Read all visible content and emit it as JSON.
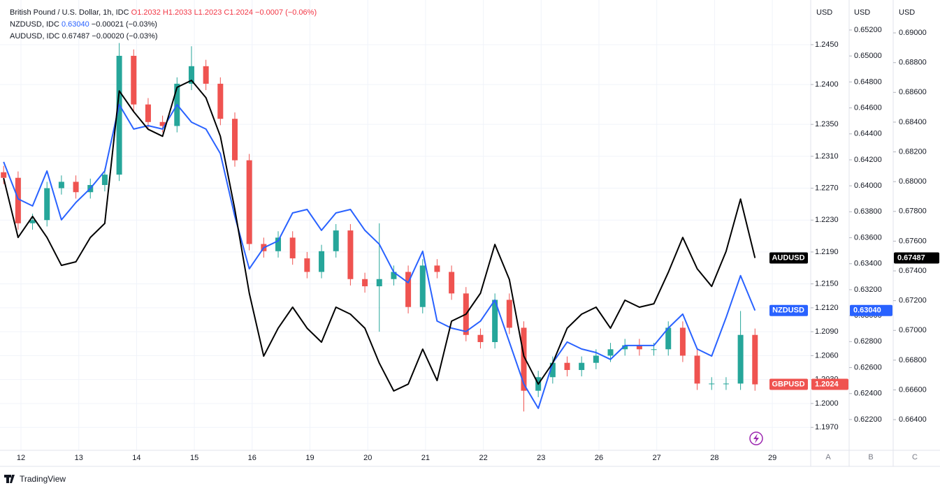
{
  "chart_data": {
    "type": "candlestick",
    "legend": {
      "gbp_title": "British Pound / U.S. Dollar, 1h, IDC",
      "gbp_o": "O1.2032",
      "gbp_h": "H1.2033",
      "gbp_l": "L1.2023",
      "gbp_c": "C1.2024",
      "gbp_chg": "−0.0007 (−0.06%)",
      "nzd_title": "NZDUSD, IDC",
      "nzd_val": "0.63040",
      "nzd_chg": "−0.00021 (−0.03%)",
      "aud_title": "AUDUSD, IDC",
      "aud_val": "0.67487",
      "aud_chg": "−0.00020 (−0.03%)"
    },
    "brand": "TradingView",
    "axis_units": [
      "USD",
      "USD",
      "USD"
    ],
    "axis_letters": [
      "A",
      "B",
      "C"
    ],
    "grid": true,
    "x": [
      -0.3,
      -0.05,
      0.2,
      0.45,
      0.7,
      0.95,
      1.2,
      1.45,
      1.7,
      1.95,
      2.2,
      2.45,
      2.7,
      2.95,
      3.2,
      3.45,
      3.7,
      3.95,
      4.2,
      4.45,
      4.7,
      4.95,
      5.2,
      5.45,
      5.7,
      5.95,
      6.2,
      6.45,
      6.7,
      6.95,
      7.2,
      7.45,
      7.7,
      7.95,
      8.2,
      8.45,
      8.7,
      8.95,
      9.2,
      9.45,
      9.7,
      9.95,
      10.2,
      10.45,
      10.7,
      10.95,
      11.2,
      11.45,
      11.7,
      11.95,
      12.2,
      12.45,
      12.7
    ],
    "xlim": [
      -0.363,
      13.664
    ],
    "xticks": [
      {
        "value": 0,
        "label": "12"
      },
      {
        "value": 1,
        "label": "13"
      },
      {
        "value": 2,
        "label": "14"
      },
      {
        "value": 3,
        "label": "15"
      },
      {
        "value": 4,
        "label": "16"
      },
      {
        "value": 5,
        "label": "19"
      },
      {
        "value": 6,
        "label": "20"
      },
      {
        "value": 7,
        "label": "21"
      },
      {
        "value": 8,
        "label": "22"
      },
      {
        "value": 9,
        "label": "23"
      },
      {
        "value": 10,
        "label": "26"
      },
      {
        "value": 11,
        "label": "27"
      },
      {
        "value": 12,
        "label": "28"
      },
      {
        "value": 13,
        "label": "29"
      }
    ],
    "ylim": [
      1.19413,
      1.2506
    ],
    "yticks": [
      {
        "value": 1.245,
        "label": "1.2450"
      },
      {
        "value": 1.24,
        "label": "1.2400"
      },
      {
        "value": 1.235,
        "label": "1.2350"
      },
      {
        "value": 1.231,
        "label": "1.2310"
      },
      {
        "value": 1.227,
        "label": "1.2270"
      },
      {
        "value": 1.223,
        "label": "1.2230"
      },
      {
        "value": 1.219,
        "label": "1.2190"
      },
      {
        "value": 1.215,
        "label": "1.2150"
      },
      {
        "value": 1.212,
        "label": "1.2120"
      },
      {
        "value": 1.209,
        "label": "1.2090"
      },
      {
        "value": 1.206,
        "label": "1.2060"
      },
      {
        "value": 1.203,
        "label": "1.2030"
      },
      {
        "value": 1.2,
        "label": "1.2000"
      },
      {
        "value": 1.197,
        "label": "1.1970"
      }
    ],
    "y2lim": [
      0.61963,
      0.65431
    ],
    "y2ticks": [
      {
        "value": 0.652,
        "label": "0.65200"
      },
      {
        "value": 0.65,
        "label": "0.65000"
      },
      {
        "value": 0.648,
        "label": "0.64800"
      },
      {
        "value": 0.646,
        "label": "0.64600"
      },
      {
        "value": 0.644,
        "label": "0.64400"
      },
      {
        "value": 0.642,
        "label": "0.64200"
      },
      {
        "value": 0.64,
        "label": "0.64000"
      },
      {
        "value": 0.638,
        "label": "0.63800"
      },
      {
        "value": 0.636,
        "label": "0.63600"
      },
      {
        "value": 0.634,
        "label": "0.63400"
      },
      {
        "value": 0.632,
        "label": "0.63200"
      },
      {
        "value": 0.63,
        "label": "0.63000"
      },
      {
        "value": 0.628,
        "label": "0.62800"
      },
      {
        "value": 0.626,
        "label": "0.62600"
      },
      {
        "value": 0.624,
        "label": "0.62400"
      },
      {
        "value": 0.622,
        "label": "0.62200"
      }
    ],
    "y3lim": [
      0.66194,
      0.69221
    ],
    "y3ticks": [
      {
        "value": 0.69,
        "label": "0.69000"
      },
      {
        "value": 0.688,
        "label": "0.68800"
      },
      {
        "value": 0.686,
        "label": "0.68600"
      },
      {
        "value": 0.684,
        "label": "0.68400"
      },
      {
        "value": 0.682,
        "label": "0.68200"
      },
      {
        "value": 0.68,
        "label": "0.68000"
      },
      {
        "value": 0.678,
        "label": "0.67800"
      },
      {
        "value": 0.676,
        "label": "0.67600"
      },
      {
        "value": 0.674,
        "label": "0.67400"
      },
      {
        "value": 0.672,
        "label": "0.67200"
      },
      {
        "value": 0.67,
        "label": "0.67000"
      },
      {
        "value": 0.668,
        "label": "0.66800"
      },
      {
        "value": 0.666,
        "label": "0.66600"
      },
      {
        "value": 0.664,
        "label": "0.66400"
      }
    ],
    "series": [
      {
        "name": "GBPUSD",
        "type": "candlestick",
        "axis": "y",
        "up_color": "#26a69a",
        "down_color": "#ef5350",
        "tag_color": "#ef5350",
        "open": [
          1.229,
          1.2283,
          1.2226,
          1.223,
          1.227,
          1.2278,
          1.2265,
          1.2274,
          1.2287,
          1.2436,
          1.2375,
          1.2353,
          1.2348,
          1.2401,
          1.2423,
          1.2401,
          1.2357,
          1.2305,
          1.22,
          1.2191,
          1.2208,
          1.2182,
          1.2165,
          1.2191,
          1.2217,
          1.2156,
          1.2147,
          1.2156,
          1.2165,
          1.2121,
          1.2173,
          1.2165,
          1.2138,
          1.2086,
          1.2077,
          1.213,
          1.2095,
          1.2016,
          1.2033,
          1.2051,
          1.2042,
          1.2051,
          1.206,
          1.2068,
          1.2073,
          1.2068,
          1.2068,
          1.2095,
          1.206,
          1.2025,
          1.2025,
          1.2025,
          1.2086
        ],
        "high": [
          1.2298,
          1.2291,
          1.2238,
          1.2278,
          1.2286,
          1.2286,
          1.2282,
          1.2295,
          1.2452,
          1.2444,
          1.2383,
          1.2361,
          1.2409,
          1.2448,
          1.2431,
          1.2409,
          1.2365,
          1.2313,
          1.2208,
          1.2216,
          1.2216,
          1.219,
          1.2199,
          1.2225,
          1.2225,
          1.2164,
          1.2226,
          1.2173,
          1.2173,
          1.2181,
          1.2181,
          1.2173,
          1.2146,
          1.2094,
          1.2138,
          1.2138,
          1.2103,
          1.2041,
          1.2059,
          1.2059,
          1.2059,
          1.2068,
          1.2076,
          1.2081,
          1.2081,
          1.2076,
          1.2103,
          1.2103,
          1.2068,
          1.2033,
          1.2033,
          1.2116,
          1.2094
        ],
        "low": [
          1.2275,
          1.2218,
          1.2218,
          1.2222,
          1.2262,
          1.2257,
          1.2257,
          1.2266,
          1.2279,
          1.2367,
          1.2345,
          1.234,
          1.234,
          1.2393,
          1.2393,
          1.2349,
          1.2297,
          1.2192,
          1.2183,
          1.2183,
          1.2174,
          1.2157,
          1.2157,
          1.2183,
          1.2148,
          1.2139,
          1.209,
          1.2148,
          1.2113,
          1.2113,
          1.2157,
          1.213,
          1.2078,
          1.2069,
          1.2069,
          1.2087,
          1.199,
          1.2008,
          1.2025,
          1.2034,
          1.2034,
          1.2043,
          1.2052,
          1.206,
          1.206,
          1.206,
          1.206,
          1.2052,
          1.2017,
          1.2017,
          1.2017,
          1.2017,
          1.2016
        ],
        "close": [
          1.2283,
          1.2226,
          1.223,
          1.227,
          1.2278,
          1.2265,
          1.2274,
          1.2287,
          1.2436,
          1.2375,
          1.2353,
          1.2348,
          1.2401,
          1.2423,
          1.2401,
          1.2357,
          1.2305,
          1.22,
          1.2191,
          1.2208,
          1.2182,
          1.2165,
          1.2191,
          1.2217,
          1.2156,
          1.2147,
          1.2156,
          1.2165,
          1.2121,
          1.2173,
          1.2165,
          1.2138,
          1.2086,
          1.2077,
          1.213,
          1.2095,
          1.2016,
          1.2033,
          1.2051,
          1.2042,
          1.2051,
          1.206,
          1.2068,
          1.2073,
          1.2068,
          1.2068,
          1.2095,
          1.206,
          1.2025,
          1.2025,
          1.2025,
          1.2086,
          1.2024
        ],
        "price_tag": {
          "value": 1.2024,
          "label": "1.2024"
        }
      },
      {
        "name": "NZDUSD",
        "type": "line",
        "axis": "y2",
        "color": "#2962ff",
        "tag_color": "#2962ff",
        "values": [
          0.64184,
          0.63899,
          0.63845,
          0.64114,
          0.63738,
          0.63872,
          0.6398,
          0.64114,
          0.64625,
          0.64437,
          0.64463,
          0.64437,
          0.64625,
          0.6449,
          0.64437,
          0.64248,
          0.63765,
          0.63361,
          0.63523,
          0.63576,
          0.63791,
          0.63818,
          0.63657,
          0.63791,
          0.63818,
          0.63657,
          0.6355,
          0.63335,
          0.63254,
          0.63496,
          0.62958,
          0.62904,
          0.62878,
          0.62958,
          0.6312,
          0.62797,
          0.62474,
          0.62286,
          0.62636,
          0.62797,
          0.62743,
          0.62716,
          0.62663,
          0.6277,
          0.6277,
          0.6277,
          0.62904,
          0.63012,
          0.62743,
          0.62689,
          0.62985,
          0.63308,
          0.6304
        ],
        "price_tag": {
          "value": 0.6304,
          "label": "0.63040"
        }
      },
      {
        "name": "AUDUSD",
        "type": "line",
        "axis": "y3",
        "color": "#000000",
        "tag_color": "#000000",
        "values": [
          0.68024,
          0.67625,
          0.67766,
          0.67625,
          0.67437,
          0.67461,
          0.67625,
          0.67719,
          0.6861,
          0.6847,
          0.68352,
          0.68305,
          0.68634,
          0.68681,
          0.68564,
          0.68305,
          0.67813,
          0.6725,
          0.66827,
          0.67015,
          0.67156,
          0.67015,
          0.66921,
          0.67156,
          0.67109,
          0.67015,
          0.6678,
          0.66593,
          0.66639,
          0.66874,
          0.66663,
          0.67062,
          0.67109,
          0.6725,
          0.67578,
          0.67343,
          0.66827,
          0.66639,
          0.6678,
          0.67015,
          0.67109,
          0.67156,
          0.67015,
          0.67203,
          0.67156,
          0.67179,
          0.6739,
          0.67625,
          0.67414,
          0.67296,
          0.67531,
          0.67883,
          0.67487
        ],
        "price_tag": {
          "value": 0.67487,
          "label": "0.67487"
        }
      }
    ]
  }
}
